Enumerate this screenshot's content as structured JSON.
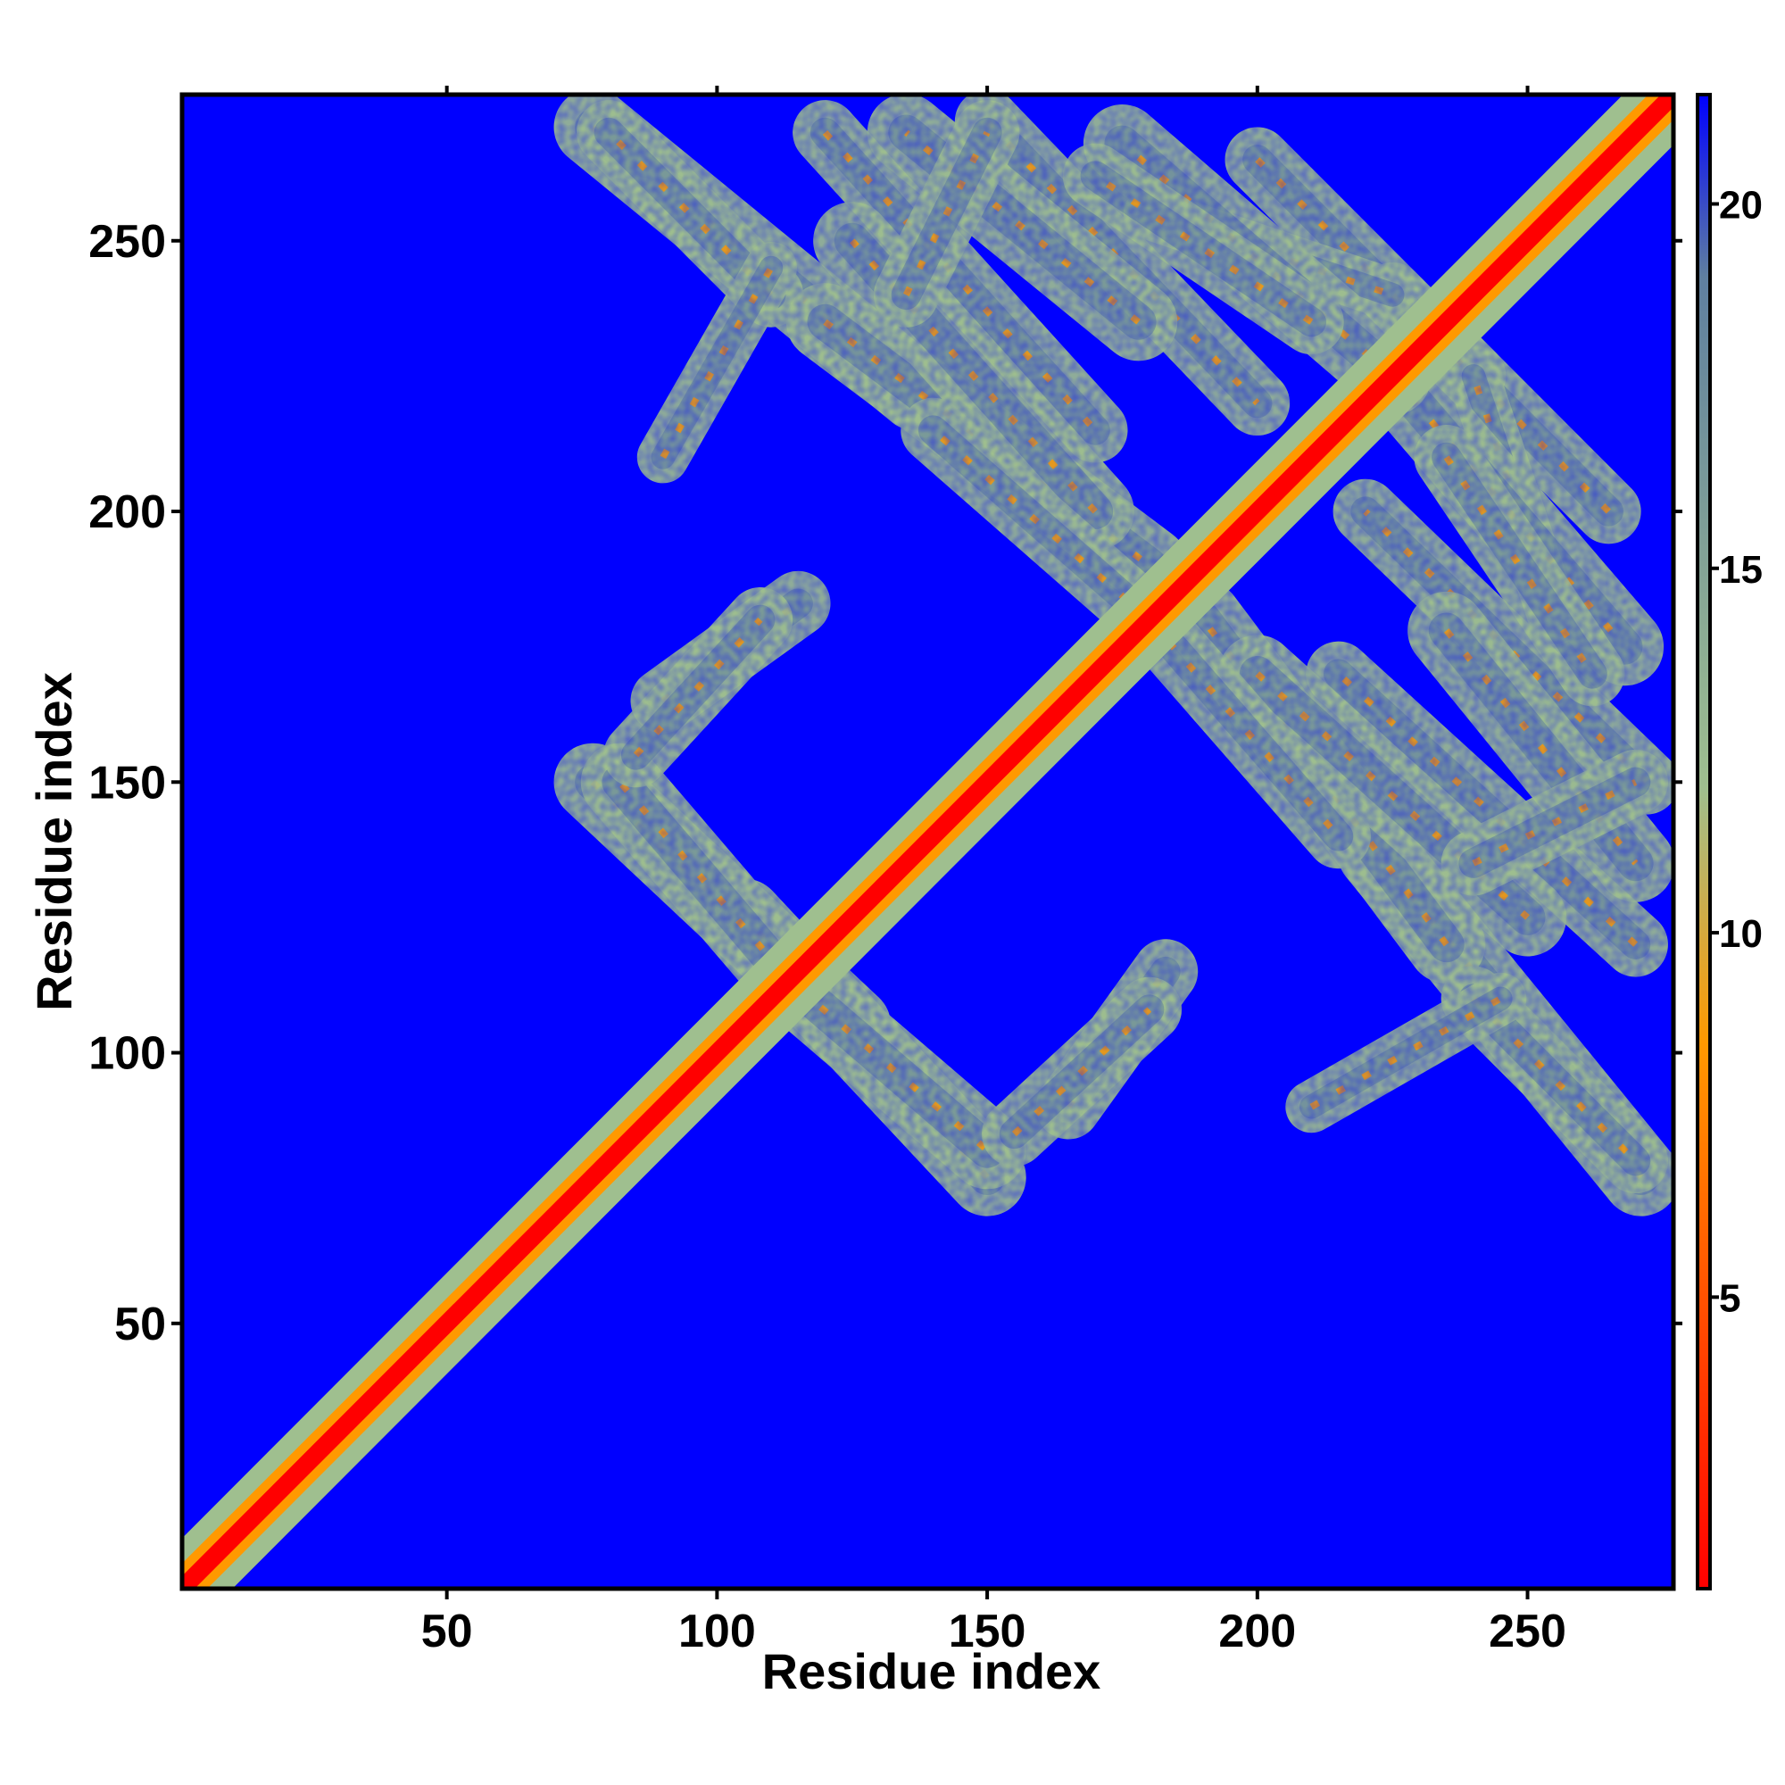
{
  "chart_data": {
    "type": "heatmap",
    "title": "",
    "xlabel": "Residue index",
    "ylabel": "Residue index",
    "n_residues": 277,
    "xlim": [
      1,
      277
    ],
    "ylim": [
      1,
      277
    ],
    "x_ticks": [
      50,
      100,
      150,
      200,
      250
    ],
    "y_ticks": [
      50,
      100,
      150,
      200,
      250
    ],
    "colorbar": {
      "ticks": [
        5,
        10,
        15,
        20
      ],
      "range": [
        1,
        21.5
      ],
      "colors": [
        "#ff0000",
        "#ff9900",
        "#9fbf8f",
        "#5f7fa0",
        "#0000ff"
      ],
      "stops": [
        1,
        8.5,
        12,
        19,
        21.5
      ]
    },
    "background_color": "#0000ff",
    "diagonal": {
      "from": 1,
      "to": 277,
      "band_width": 6
    },
    "contact_bands": [
      {
        "name": "b1",
        "x": [
          77,
          137
        ],
        "y": [
          271,
          222
        ],
        "width": 6
      },
      {
        "name": "b2",
        "x": [
          120,
          180
        ],
        "y": [
          235,
          190
        ],
        "width": 6
      },
      {
        "name": "b3",
        "x": [
          120,
          170
        ],
        "y": [
          270,
          215
        ],
        "width": 5
      },
      {
        "name": "b4",
        "x": [
          150,
          200
        ],
        "y": [
          272,
          220
        ],
        "width": 5
      },
      {
        "name": "b5",
        "x": [
          200,
          240
        ],
        "y": [
          265,
          225
        ],
        "width": 5
      },
      {
        "name": "b6",
        "x": [
          180,
          225
        ],
        "y": [
          255,
          240
        ],
        "width": 4
      },
      {
        "name": "b7",
        "x": [
          225,
          268
        ],
        "y": [
          225,
          175
        ],
        "width": 6
      },
      {
        "name": "b8",
        "x": [
          235,
          270
        ],
        "y": [
          178,
          135
        ],
        "width": 6
      },
      {
        "name": "b9",
        "x": [
          235,
          262
        ],
        "y": [
          210,
          170
        ],
        "width": 5
      },
      {
        "name": "b10",
        "x": [
          200,
          250
        ],
        "y": [
          170,
          125
        ],
        "width": 6
      },
      {
        "name": "b11",
        "x": [
          180,
          215
        ],
        "y": [
          180,
          140
        ],
        "width": 5
      },
      {
        "name": "b12",
        "x": [
          77,
          125
        ],
        "y": [
          150,
          105
        ],
        "width": 6
      },
      {
        "name": "b13",
        "x": [
          115,
          150
        ],
        "y": [
          112,
          82
        ],
        "width": 6
      },
      {
        "name": "b14",
        "x": [
          90,
          115
        ],
        "y": [
          165,
          183
        ],
        "width": 5
      },
      {
        "name": "b15",
        "x": [
          155,
          180
        ],
        "y": [
          85,
          108
        ],
        "width": 5
      },
      {
        "name": "b16",
        "x": [
          240,
          270
        ],
        "y": [
          110,
          80
        ],
        "width": 5
      },
      {
        "name": "b17",
        "x": [
          240,
          270
        ],
        "y": [
          135,
          150
        ],
        "width": 5
      },
      {
        "name": "b18",
        "x": [
          210,
          245
        ],
        "y": [
          90,
          110
        ],
        "width": 4
      }
    ]
  }
}
